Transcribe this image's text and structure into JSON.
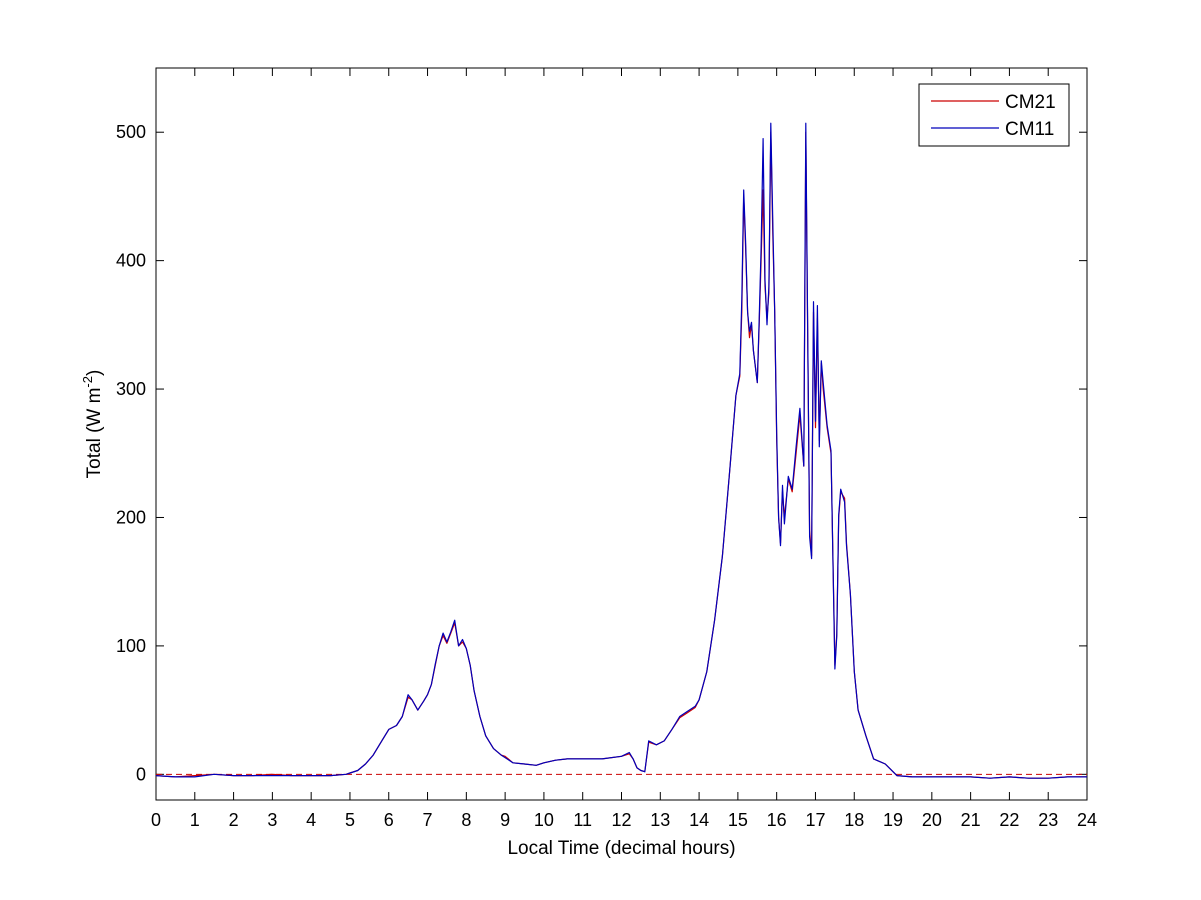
{
  "chart_data": {
    "type": "line",
    "title": "",
    "xlabel": "Local Time (decimal hours)",
    "ylabel": {
      "main": "Total (W m",
      "superscript": "-2",
      "close": ")"
    },
    "xlim": [
      0,
      24
    ],
    "ylim": [
      -20,
      550
    ],
    "x_ticks": [
      0,
      1,
      2,
      3,
      4,
      5,
      6,
      7,
      8,
      9,
      10,
      11,
      12,
      13,
      14,
      15,
      16,
      17,
      18,
      19,
      20,
      21,
      22,
      23,
      24
    ],
    "y_ticks": [
      0,
      100,
      200,
      300,
      400,
      500
    ],
    "grid": false,
    "legend_position": "top-right",
    "reference_line": {
      "y": 0,
      "style": "dashed",
      "color": "#cc0000"
    },
    "series": [
      {
        "name": "CM21",
        "color": "#cc0000",
        "points": [
          [
            0,
            -1
          ],
          [
            0.5,
            -2
          ],
          [
            1.0,
            -1
          ],
          [
            1.5,
            0
          ],
          [
            2.0,
            -1
          ],
          [
            2.5,
            -1
          ],
          [
            3.0,
            0
          ],
          [
            3.5,
            -1
          ],
          [
            4.0,
            -1
          ],
          [
            4.5,
            -1
          ],
          [
            4.9,
            0
          ],
          [
            5.0,
            1
          ],
          [
            5.2,
            3
          ],
          [
            5.4,
            8
          ],
          [
            5.6,
            15
          ],
          [
            5.8,
            25
          ],
          [
            6.0,
            35
          ],
          [
            6.2,
            38
          ],
          [
            6.35,
            45
          ],
          [
            6.5,
            60
          ],
          [
            6.6,
            58
          ],
          [
            6.75,
            50
          ],
          [
            6.9,
            57
          ],
          [
            7.0,
            62
          ],
          [
            7.1,
            70
          ],
          [
            7.2,
            85
          ],
          [
            7.3,
            100
          ],
          [
            7.4,
            108
          ],
          [
            7.5,
            102
          ],
          [
            7.6,
            110
          ],
          [
            7.7,
            118
          ],
          [
            7.8,
            100
          ],
          [
            7.9,
            103
          ],
          [
            8.0,
            98
          ],
          [
            8.1,
            85
          ],
          [
            8.2,
            65
          ],
          [
            8.35,
            45
          ],
          [
            8.5,
            30
          ],
          [
            8.7,
            20
          ],
          [
            8.9,
            15
          ],
          [
            9.0,
            14
          ],
          [
            9.2,
            9
          ],
          [
            9.5,
            8
          ],
          [
            9.8,
            7
          ],
          [
            10.0,
            9
          ],
          [
            10.3,
            11
          ],
          [
            10.6,
            12
          ],
          [
            11.0,
            12
          ],
          [
            11.5,
            12
          ],
          [
            12.0,
            14
          ],
          [
            12.2,
            16
          ],
          [
            12.3,
            12
          ],
          [
            12.4,
            5
          ],
          [
            12.5,
            3
          ],
          [
            12.6,
            2
          ],
          [
            12.7,
            25
          ],
          [
            12.9,
            23
          ],
          [
            13.1,
            26
          ],
          [
            13.3,
            35
          ],
          [
            13.5,
            44
          ],
          [
            13.7,
            48
          ],
          [
            13.9,
            52
          ],
          [
            14.0,
            58
          ],
          [
            14.2,
            80
          ],
          [
            14.4,
            120
          ],
          [
            14.6,
            170
          ],
          [
            14.8,
            240
          ],
          [
            14.95,
            295
          ],
          [
            15.05,
            310
          ],
          [
            15.1,
            360
          ],
          [
            15.15,
            450
          ],
          [
            15.2,
            410
          ],
          [
            15.25,
            360
          ],
          [
            15.3,
            340
          ],
          [
            15.35,
            350
          ],
          [
            15.4,
            330
          ],
          [
            15.5,
            305
          ],
          [
            15.55,
            350
          ],
          [
            15.6,
            400
          ],
          [
            15.65,
            455
          ],
          [
            15.7,
            380
          ],
          [
            15.75,
            355
          ],
          [
            15.8,
            375
          ],
          [
            15.85,
            500
          ],
          [
            15.9,
            420
          ],
          [
            15.95,
            360
          ],
          [
            16.0,
            260
          ],
          [
            16.05,
            200
          ],
          [
            16.1,
            180
          ],
          [
            16.15,
            220
          ],
          [
            16.2,
            200
          ],
          [
            16.3,
            230
          ],
          [
            16.4,
            220
          ],
          [
            16.5,
            250
          ],
          [
            16.6,
            280
          ],
          [
            16.7,
            240
          ],
          [
            16.75,
            500
          ],
          [
            16.8,
            340
          ],
          [
            16.85,
            190
          ],
          [
            16.9,
            170
          ],
          [
            16.95,
            360
          ],
          [
            17.0,
            270
          ],
          [
            17.05,
            355
          ],
          [
            17.1,
            260
          ],
          [
            17.15,
            320
          ],
          [
            17.2,
            300
          ],
          [
            17.3,
            270
          ],
          [
            17.4,
            250
          ],
          [
            17.45,
            170
          ],
          [
            17.5,
            85
          ],
          [
            17.55,
            110
          ],
          [
            17.6,
            200
          ],
          [
            17.65,
            220
          ],
          [
            17.75,
            215
          ],
          [
            17.8,
            180
          ],
          [
            17.9,
            140
          ],
          [
            18.0,
            80
          ],
          [
            18.1,
            50
          ],
          [
            18.3,
            30
          ],
          [
            18.5,
            12
          ],
          [
            18.8,
            8
          ],
          [
            19.0,
            2
          ],
          [
            19.1,
            -1
          ],
          [
            19.5,
            -2
          ],
          [
            20.0,
            -2
          ],
          [
            20.5,
            -2
          ],
          [
            21.0,
            -2
          ],
          [
            21.5,
            -3
          ],
          [
            22.0,
            -2
          ],
          [
            22.5,
            -3
          ],
          [
            23.0,
            -3
          ],
          [
            23.5,
            -2
          ],
          [
            24.0,
            -2
          ]
        ]
      },
      {
        "name": "CM11",
        "color": "#0000bb",
        "points": [
          [
            0,
            -1
          ],
          [
            0.5,
            -2
          ],
          [
            1.0,
            -2
          ],
          [
            1.5,
            0
          ],
          [
            2.0,
            -1
          ],
          [
            2.5,
            -1
          ],
          [
            3.0,
            -1
          ],
          [
            3.5,
            -1
          ],
          [
            4.0,
            -1
          ],
          [
            4.5,
            -1
          ],
          [
            4.9,
            0
          ],
          [
            5.0,
            1
          ],
          [
            5.2,
            3
          ],
          [
            5.4,
            8
          ],
          [
            5.6,
            15
          ],
          [
            5.8,
            25
          ],
          [
            6.0,
            35
          ],
          [
            6.2,
            38
          ],
          [
            6.35,
            45
          ],
          [
            6.5,
            62
          ],
          [
            6.6,
            58
          ],
          [
            6.75,
            50
          ],
          [
            6.9,
            57
          ],
          [
            7.0,
            62
          ],
          [
            7.1,
            70
          ],
          [
            7.2,
            86
          ],
          [
            7.3,
            100
          ],
          [
            7.4,
            110
          ],
          [
            7.5,
            103
          ],
          [
            7.6,
            111
          ],
          [
            7.7,
            120
          ],
          [
            7.8,
            100
          ],
          [
            7.9,
            105
          ],
          [
            8.0,
            98
          ],
          [
            8.1,
            85
          ],
          [
            8.2,
            65
          ],
          [
            8.35,
            45
          ],
          [
            8.5,
            30
          ],
          [
            8.7,
            20
          ],
          [
            8.9,
            15
          ],
          [
            9.0,
            13
          ],
          [
            9.2,
            9
          ],
          [
            9.5,
            8
          ],
          [
            9.8,
            7
          ],
          [
            10.0,
            9
          ],
          [
            10.3,
            11
          ],
          [
            10.6,
            12
          ],
          [
            11.0,
            12
          ],
          [
            11.5,
            12
          ],
          [
            12.0,
            14
          ],
          [
            12.2,
            17
          ],
          [
            12.3,
            12
          ],
          [
            12.4,
            5
          ],
          [
            12.5,
            3
          ],
          [
            12.6,
            2
          ],
          [
            12.7,
            26
          ],
          [
            12.9,
            23
          ],
          [
            13.1,
            26
          ],
          [
            13.3,
            35
          ],
          [
            13.5,
            45
          ],
          [
            13.7,
            49
          ],
          [
            13.9,
            53
          ],
          [
            14.0,
            58
          ],
          [
            14.2,
            80
          ],
          [
            14.4,
            120
          ],
          [
            14.6,
            170
          ],
          [
            14.8,
            240
          ],
          [
            14.95,
            295
          ],
          [
            15.05,
            312
          ],
          [
            15.1,
            370
          ],
          [
            15.15,
            455
          ],
          [
            15.2,
            415
          ],
          [
            15.25,
            360
          ],
          [
            15.3,
            345
          ],
          [
            15.35,
            352
          ],
          [
            15.4,
            330
          ],
          [
            15.5,
            305
          ],
          [
            15.55,
            355
          ],
          [
            15.6,
            410
          ],
          [
            15.65,
            495
          ],
          [
            15.7,
            385
          ],
          [
            15.75,
            350
          ],
          [
            15.8,
            380
          ],
          [
            15.85,
            507
          ],
          [
            15.9,
            430
          ],
          [
            15.95,
            360
          ],
          [
            16.0,
            265
          ],
          [
            16.05,
            200
          ],
          [
            16.1,
            178
          ],
          [
            16.15,
            225
          ],
          [
            16.2,
            195
          ],
          [
            16.3,
            232
          ],
          [
            16.4,
            222
          ],
          [
            16.5,
            255
          ],
          [
            16.6,
            285
          ],
          [
            16.7,
            240
          ],
          [
            16.75,
            507
          ],
          [
            16.8,
            345
          ],
          [
            16.85,
            185
          ],
          [
            16.9,
            168
          ],
          [
            16.95,
            368
          ],
          [
            17.0,
            275
          ],
          [
            17.05,
            365
          ],
          [
            17.1,
            255
          ],
          [
            17.15,
            322
          ],
          [
            17.2,
            305
          ],
          [
            17.3,
            272
          ],
          [
            17.4,
            252
          ],
          [
            17.45,
            168
          ],
          [
            17.5,
            82
          ],
          [
            17.55,
            108
          ],
          [
            17.6,
            202
          ],
          [
            17.65,
            222
          ],
          [
            17.75,
            212
          ],
          [
            17.8,
            178
          ],
          [
            17.9,
            140
          ],
          [
            18.0,
            80
          ],
          [
            18.1,
            50
          ],
          [
            18.3,
            30
          ],
          [
            18.5,
            12
          ],
          [
            18.8,
            8
          ],
          [
            19.0,
            2
          ],
          [
            19.1,
            -1
          ],
          [
            19.5,
            -2
          ],
          [
            20.0,
            -2
          ],
          [
            20.5,
            -2
          ],
          [
            21.0,
            -2
          ],
          [
            21.5,
            -3
          ],
          [
            22.0,
            -2
          ],
          [
            22.5,
            -3
          ],
          [
            23.0,
            -3
          ],
          [
            23.5,
            -2
          ],
          [
            24.0,
            -2
          ]
        ]
      }
    ]
  }
}
